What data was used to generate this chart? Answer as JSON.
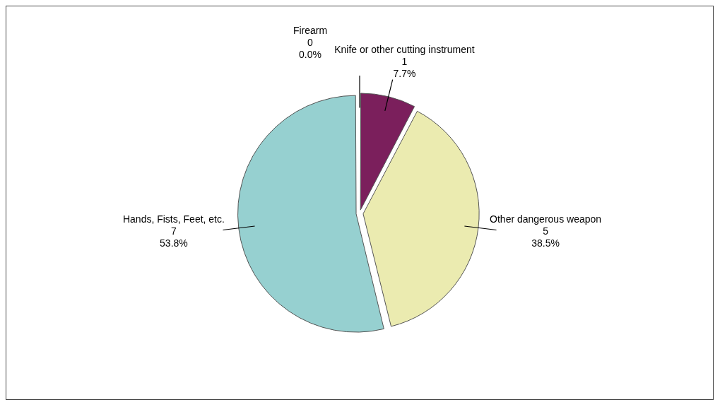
{
  "chart_data": {
    "type": "pie",
    "categories": [
      "Firearm",
      "Knife or other cutting instrument",
      "Other dangerous weapon",
      "Hands, Fists, Feet, etc."
    ],
    "values": [
      0,
      1,
      5,
      7
    ],
    "value_labels": [
      "0\n0.0%",
      "1\n7.7%",
      "5\n38.5%",
      "7\n53.8%"
    ],
    "colors": [
      "#ffffff",
      "#7b1f5c",
      "#ebebb0",
      "#96d0d0"
    ],
    "legend": false
  }
}
